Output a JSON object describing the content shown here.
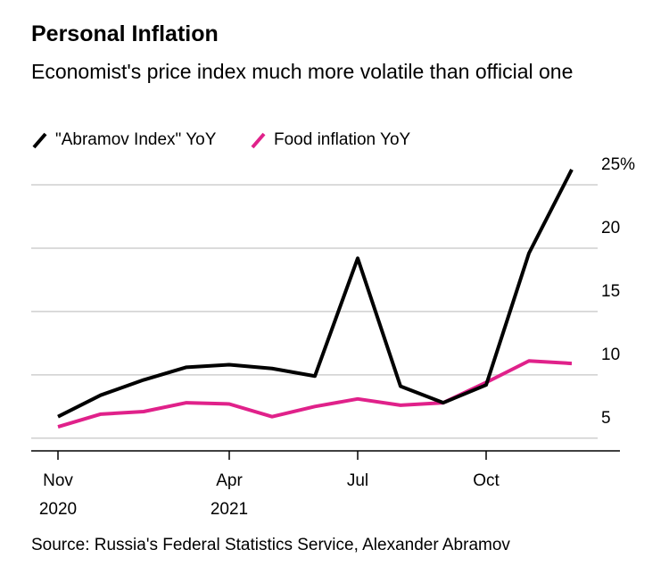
{
  "chart_data": {
    "type": "line",
    "title": "Personal Inflation",
    "subtitle": "Economist's price index much more volatile than official one",
    "source": "Source: Russia's Federal Statistics Service, Alexander Abramov",
    "categories": [
      "Nov 2020",
      null,
      null,
      null,
      "Apr 2021",
      null,
      null,
      "Jul",
      null,
      null,
      "Oct",
      null,
      null
    ],
    "series": [
      {
        "name": "\"Abramov Index\" YoY",
        "color": "#000000",
        "values": [
          6.7,
          8.4,
          9.6,
          10.6,
          10.8,
          10.5,
          9.9,
          19.2,
          9.1,
          7.8,
          9.2,
          19.6,
          26.2
        ]
      },
      {
        "name": "Food inflation YoY",
        "color": "#e0218a",
        "values": [
          5.9,
          6.9,
          7.1,
          7.8,
          7.7,
          6.7,
          7.5,
          8.1,
          7.6,
          7.8,
          9.4,
          11.1,
          10.9
        ]
      }
    ],
    "ylim": [
      4,
      26.5
    ],
    "yticks": [
      5,
      10,
      15,
      20,
      {
        "value": 25,
        "label": "25%"
      }
    ],
    "grid": true
  }
}
